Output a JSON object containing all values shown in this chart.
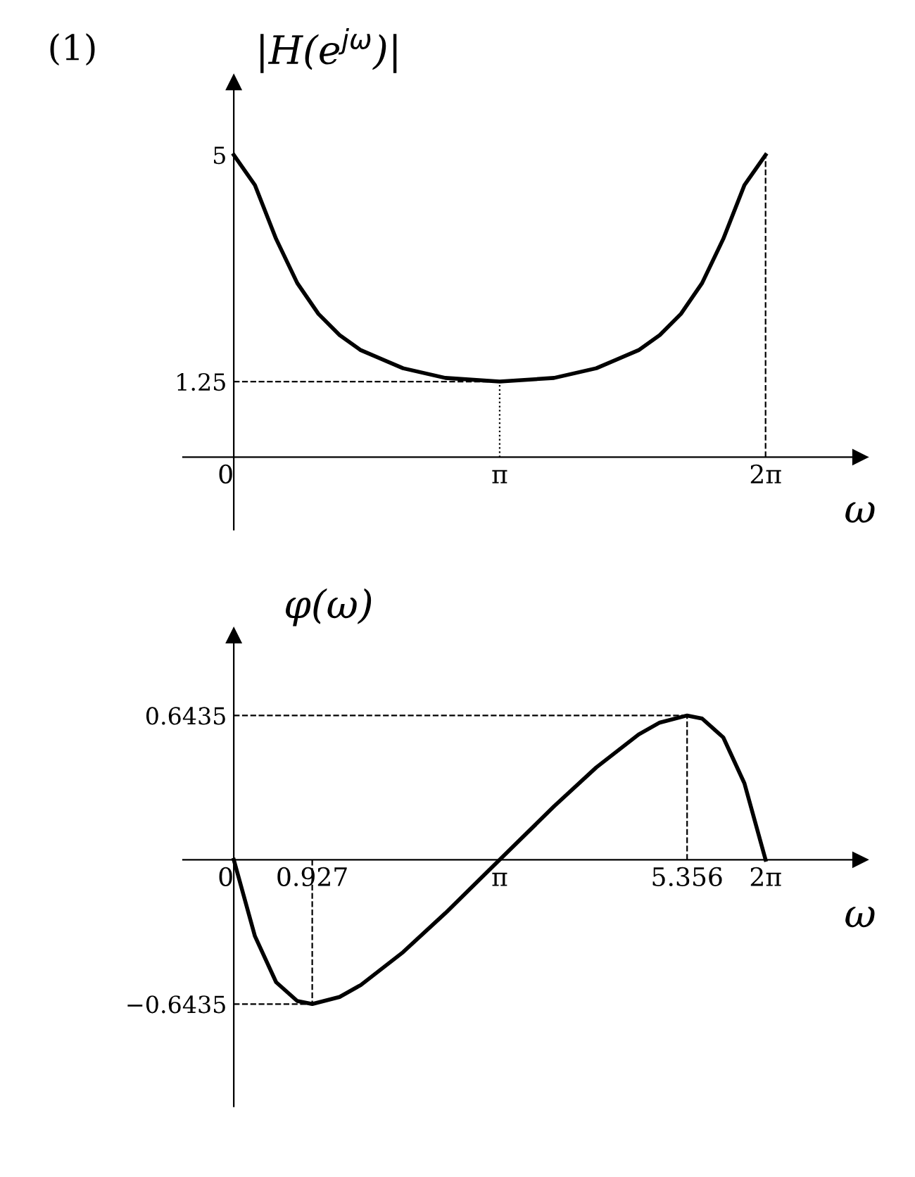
{
  "chart_data": [
    {
      "type": "line",
      "annotations": [
        "(1)"
      ],
      "ylabel": "|H(e$^{jω}$)|",
      "xlabel": "ω",
      "grid": false,
      "marker": "none",
      "line_style": "solid",
      "xlim": [
        -0.6,
        7.4
      ],
      "ylim": [
        -1.2,
        6.2
      ],
      "xticks": [
        {
          "value": 0,
          "label": "0"
        },
        {
          "value": 3.1416,
          "label": "π"
        },
        {
          "value": 6.2832,
          "label": "2π"
        }
      ],
      "yticks": [
        {
          "value": 1.25,
          "label": "1.25"
        },
        {
          "value": 5,
          "label": "5"
        }
      ],
      "series": [
        {
          "color": "#000000",
          "x": [
            0,
            0.25,
            0.5,
            0.75,
            1,
            1.25,
            1.5,
            2,
            2.5,
            3.1416,
            3.7832,
            4.2832,
            4.7832,
            5.0332,
            5.2832,
            5.5332,
            5.7832,
            6.0332,
            6.2832
          ],
          "values": [
            5,
            4.5,
            3.61,
            2.88,
            2.37,
            2.02,
            1.77,
            1.47,
            1.31,
            1.25,
            1.31,
            1.47,
            1.77,
            2.02,
            2.37,
            2.88,
            3.61,
            4.5,
            5
          ]
        }
      ],
      "ref_lines": [
        {
          "axis": "y",
          "value": 1.25,
          "line_style": "dashed",
          "color": "#000000"
        },
        {
          "axis": "x",
          "value": 3.1416,
          "line_style": "dotted",
          "color": "#000000"
        },
        {
          "axis": "x",
          "value": 6.2832,
          "line_style": "dashed",
          "color": "#000000"
        }
      ]
    },
    {
      "type": "line",
      "ylabel": "φ(ω)",
      "xlabel": "ω",
      "grid": false,
      "marker": "none",
      "line_style": "solid",
      "xlim": [
        -0.6,
        7.4
      ],
      "ylim": [
        -1.1,
        1.0
      ],
      "xticks": [
        {
          "value": 0,
          "label": "0"
        },
        {
          "value": 0.927,
          "label": "0.927"
        },
        {
          "value": 3.1416,
          "label": "π"
        },
        {
          "value": 5.356,
          "label": "5.356"
        },
        {
          "value": 6.2832,
          "label": "2π"
        }
      ],
      "yticks": [
        {
          "value": -0.6435,
          "label": "−0.6435"
        },
        {
          "value": 0.6435,
          "label": "0.6435"
        }
      ],
      "series": [
        {
          "color": "#000000",
          "x": [
            0,
            0.25,
            0.5,
            0.75,
            0.927,
            1.25,
            1.5,
            2,
            2.5,
            3.1416,
            3.7832,
            4.2832,
            4.7832,
            5.0332,
            5.356,
            5.5332,
            5.7832,
            6.0332,
            6.2832
          ],
          "values": [
            0,
            -0.341,
            -0.546,
            -0.63,
            -0.6435,
            -0.612,
            -0.559,
            -0.412,
            -0.238,
            0,
            0.238,
            0.412,
            0.559,
            0.612,
            0.6435,
            0.63,
            0.546,
            0.341,
            0
          ]
        }
      ],
      "ref_lines": [
        {
          "axis": "y",
          "value": 0.6435,
          "line_style": "dashed",
          "color": "#000000"
        },
        {
          "axis": "y",
          "value": -0.6435,
          "line_style": "dashed",
          "color": "#000000"
        },
        {
          "axis": "x",
          "value": 0.927,
          "line_style": "dashed",
          "color": "#000000"
        },
        {
          "axis": "x",
          "value": 5.356,
          "line_style": "dashed",
          "color": "#000000"
        }
      ]
    }
  ]
}
